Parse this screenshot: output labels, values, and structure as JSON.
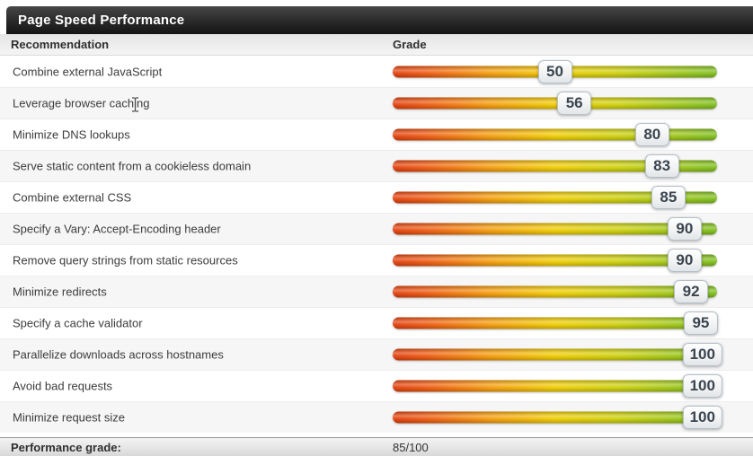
{
  "panel": {
    "title": "Page Speed Performance"
  },
  "table": {
    "columns": {
      "recommendation": "Recommendation",
      "grade": "Grade"
    },
    "rows": [
      {
        "label": "Combine external JavaScript",
        "grade": 50
      },
      {
        "label": "Leverage browser caching",
        "grade": 56
      },
      {
        "label": "Minimize DNS lookups",
        "grade": 80
      },
      {
        "label": "Serve static content from a cookieless domain",
        "grade": 83
      },
      {
        "label": "Combine external CSS",
        "grade": 85
      },
      {
        "label": "Specify a Vary: Accept-Encoding header",
        "grade": 90
      },
      {
        "label": "Remove query strings from static resources",
        "grade": 90
      },
      {
        "label": "Minimize redirects",
        "grade": 92
      },
      {
        "label": "Specify a cache validator",
        "grade": 95
      },
      {
        "label": "Parallelize downloads across hostnames",
        "grade": 100
      },
      {
        "label": "Avoid bad requests",
        "grade": 100
      },
      {
        "label": "Minimize request size",
        "grade": 100
      }
    ],
    "footer": {
      "label": "Performance grade:",
      "value": "85/100"
    }
  },
  "colors": {
    "title_bar": "#1a1a1a",
    "bar_gradient": [
      "#e2400e",
      "#f59d0e",
      "#f0cd05",
      "#9cc61a",
      "#7ebe1f"
    ],
    "badge_border": "#b4bfc7",
    "badge_text": "#3a4550",
    "alt_row": "#f6f6f6"
  }
}
